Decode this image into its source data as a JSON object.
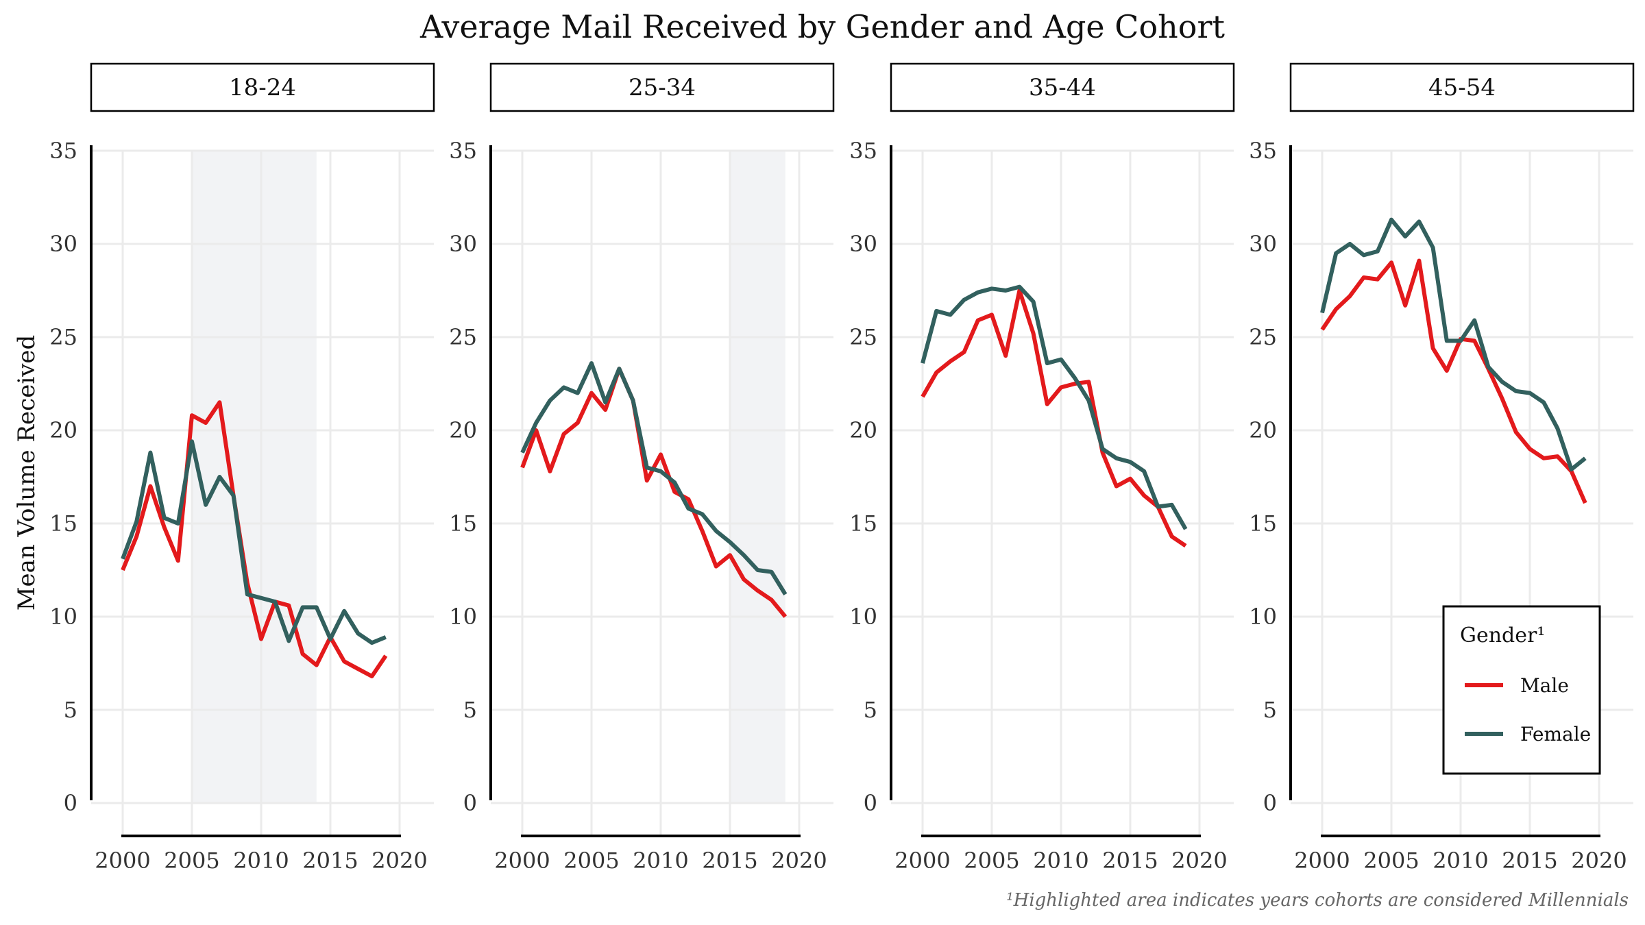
{
  "chart_data": {
    "type": "line",
    "title": "Average Mail Received by Gender and Age Cohort",
    "ylabel": "Mean Volume Received",
    "xlabel": "",
    "ylim": [
      0,
      35
    ],
    "xlim": [
      2000,
      2020
    ],
    "yticks": [
      0,
      5,
      10,
      15,
      20,
      25,
      30,
      35
    ],
    "xticks": [
      2000,
      2005,
      2010,
      2015,
      2020
    ],
    "grid": true,
    "legend": {
      "title": "Gender¹",
      "placement": "bottom-right of last panel",
      "entries": [
        {
          "name": "Male",
          "color": "#e31a1c"
        },
        {
          "name": "Female",
          "color": "#32605e"
        }
      ]
    },
    "caption": "¹Highlighted area indicates years cohorts are considered Millennials",
    "colors": {
      "Male": "#e31a1c",
      "Female": "#32605e",
      "highlight": "#f2f3f5"
    },
    "panels": [
      {
        "label": "18-24",
        "highlight": [
          2005,
          2014
        ],
        "x": [
          2000,
          2001,
          2002,
          2003,
          2004,
          2005,
          2006,
          2007,
          2008,
          2009,
          2010,
          2011,
          2012,
          2013,
          2014,
          2015,
          2016,
          2017,
          2018,
          2019
        ],
        "series": [
          {
            "name": "Male",
            "values": [
              12.5,
              14.3,
              17.0,
              14.8,
              13.0,
              20.8,
              20.4,
              21.5,
              16.5,
              11.8,
              8.8,
              10.8,
              10.6,
              8.0,
              7.4,
              8.9,
              7.6,
              7.2,
              6.8,
              7.9
            ]
          },
          {
            "name": "Female",
            "values": [
              13.1,
              15.1,
              18.8,
              15.3,
              15.0,
              19.4,
              16.0,
              17.5,
              16.5,
              11.2,
              11.0,
              10.8,
              8.7,
              10.5,
              10.5,
              8.8,
              10.3,
              9.1,
              8.6,
              8.9
            ]
          }
        ]
      },
      {
        "label": "25-34",
        "highlight": [
          2015,
          2019
        ],
        "x": [
          2000,
          2001,
          2002,
          2003,
          2004,
          2005,
          2006,
          2007,
          2008,
          2009,
          2010,
          2011,
          2012,
          2013,
          2014,
          2015,
          2016,
          2017,
          2018,
          2019
        ],
        "series": [
          {
            "name": "Male",
            "values": [
              18.0,
              20.0,
              17.8,
              19.8,
              20.4,
              22.0,
              21.1,
              23.3,
              21.6,
              17.3,
              18.7,
              16.7,
              16.3,
              14.6,
              12.7,
              13.3,
              12.0,
              11.4,
              10.9,
              10.0
            ]
          },
          {
            "name": "Female",
            "values": [
              18.8,
              20.4,
              21.6,
              22.3,
              22.0,
              23.6,
              21.5,
              23.3,
              21.6,
              18.0,
              17.8,
              17.2,
              15.8,
              15.5,
              14.6,
              14.0,
              13.3,
              12.5,
              12.4,
              11.2
            ]
          }
        ]
      },
      {
        "label": "35-44",
        "highlight": null,
        "x": [
          2000,
          2001,
          2002,
          2003,
          2004,
          2005,
          2006,
          2007,
          2008,
          2009,
          2010,
          2011,
          2012,
          2013,
          2014,
          2015,
          2016,
          2017,
          2018,
          2019
        ],
        "series": [
          {
            "name": "Male",
            "values": [
              21.8,
              23.1,
              23.7,
              24.2,
              25.9,
              26.2,
              24.0,
              27.5,
              25.2,
              21.4,
              22.3,
              22.5,
              22.6,
              18.8,
              17.0,
              17.4,
              16.5,
              15.9,
              14.3,
              13.8
            ]
          },
          {
            "name": "Female",
            "values": [
              23.6,
              26.4,
              26.2,
              27.0,
              27.4,
              27.6,
              27.5,
              27.7,
              26.9,
              23.6,
              23.8,
              22.8,
              21.6,
              19.0,
              18.5,
              18.3,
              17.8,
              15.9,
              16.0,
              14.7
            ]
          }
        ]
      },
      {
        "label": "45-54",
        "highlight": null,
        "x": [
          2000,
          2001,
          2002,
          2003,
          2004,
          2005,
          2006,
          2007,
          2008,
          2009,
          2010,
          2011,
          2012,
          2013,
          2014,
          2015,
          2016,
          2017,
          2018,
          2019
        ],
        "series": [
          {
            "name": "Male",
            "values": [
              25.4,
              26.5,
              27.2,
              28.2,
              28.1,
              29.0,
              26.7,
              29.1,
              24.4,
              23.2,
              24.9,
              24.8,
              23.3,
              21.7,
              19.9,
              19.0,
              18.5,
              18.6,
              17.8,
              16.1
            ]
          },
          {
            "name": "Female",
            "values": [
              26.3,
              29.5,
              30.0,
              29.4,
              29.6,
              31.3,
              30.4,
              31.2,
              29.8,
              24.8,
              24.8,
              25.9,
              23.4,
              22.6,
              22.1,
              22.0,
              21.5,
              20.1,
              17.9,
              18.5
            ]
          }
        ]
      }
    ]
  }
}
